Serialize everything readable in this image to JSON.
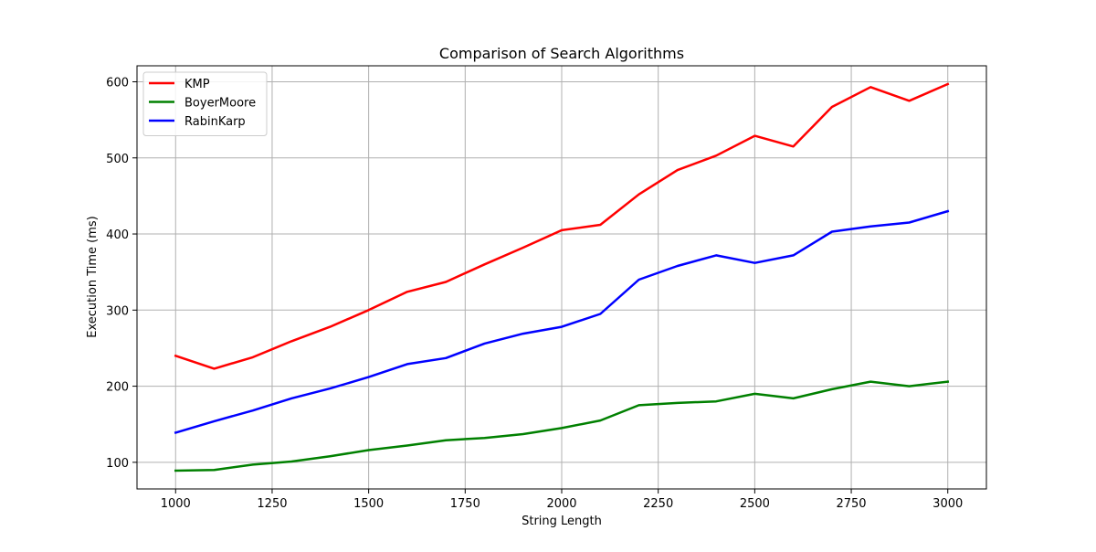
{
  "chart_data": {
    "type": "line",
    "title": "Comparison of Search Algorithms",
    "xlabel": "String Length",
    "ylabel": "Execution Time (ms)",
    "x": [
      1000,
      1100,
      1200,
      1300,
      1400,
      1500,
      1600,
      1700,
      1800,
      1900,
      2000,
      2100,
      2200,
      2300,
      2400,
      2500,
      2600,
      2700,
      2800,
      2900,
      3000
    ],
    "xlim": [
      900,
      3100
    ],
    "ylim": [
      65,
      621
    ],
    "x_ticks": [
      1000,
      1250,
      1500,
      1750,
      2000,
      2250,
      2500,
      2750,
      3000
    ],
    "y_ticks": [
      100,
      200,
      300,
      400,
      500,
      600
    ],
    "grid": true,
    "legend_position": "top-left",
    "series": [
      {
        "name": "KMP",
        "color": "#ff0000",
        "values": [
          240,
          223,
          238,
          259,
          278,
          300,
          324,
          337,
          360,
          382,
          405,
          412,
          452,
          484,
          503,
          529,
          515,
          567,
          593,
          575,
          597
        ]
      },
      {
        "name": "BoyerMoore",
        "color": "#008000",
        "values": [
          89,
          90,
          97,
          101,
          108,
          116,
          122,
          129,
          132,
          137,
          145,
          155,
          175,
          178,
          180,
          190,
          184,
          196,
          206,
          200,
          206
        ]
      },
      {
        "name": "RabinKarp",
        "color": "#0000ff",
        "values": [
          139,
          154,
          168,
          184,
          197,
          212,
          229,
          237,
          256,
          269,
          278,
          295,
          340,
          358,
          372,
          362,
          372,
          403,
          410,
          415,
          430
        ]
      }
    ]
  }
}
